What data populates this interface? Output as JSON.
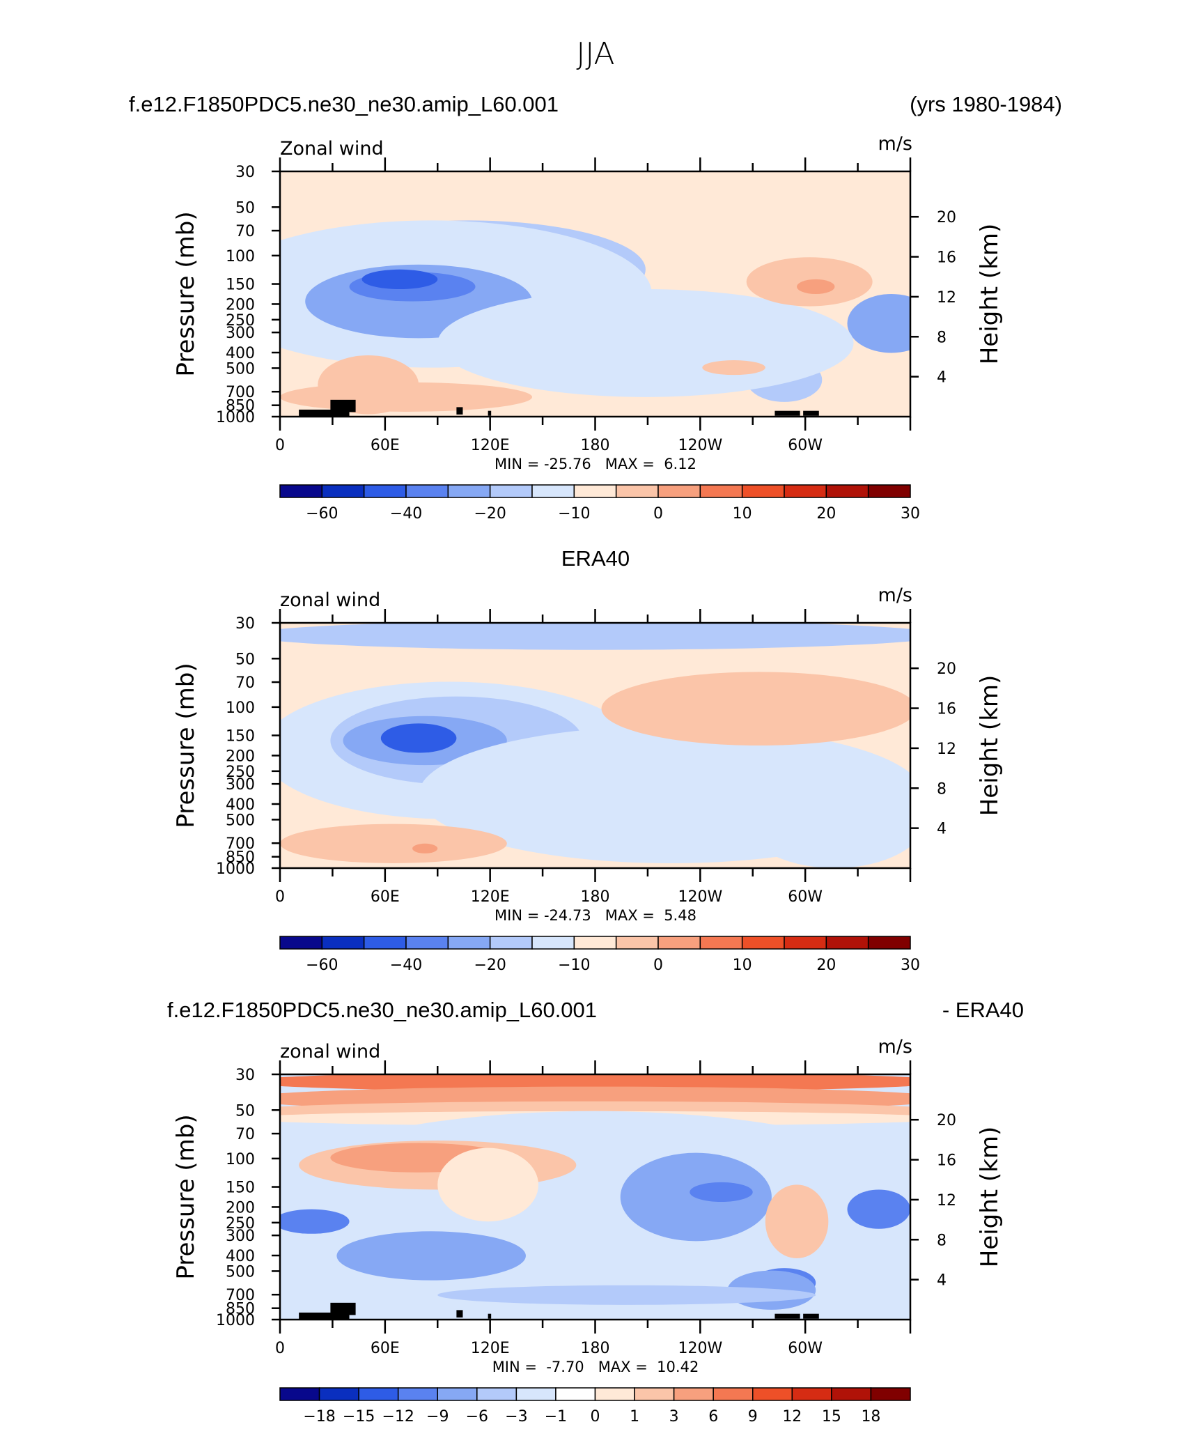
{
  "page": {
    "title": "JJA"
  },
  "colors": {
    "frame": "#000000",
    "text": "#000000",
    "terrain": "#000000"
  },
  "chart_data": [
    {
      "type": "heatmap",
      "id": "model",
      "case_title": "f.e12.F1850PDC5.ne30_ne30.amip_L60.001",
      "case_years": "(yrs 1980-1984)",
      "subtitle_left": "Zonal wind",
      "subtitle_right": "m/s",
      "ylabel": "Pressure (mb)",
      "ylabel_right": "Height (km)",
      "y_ticks": [
        "30",
        "50",
        "70",
        "100",
        "150",
        "200",
        "250",
        "300",
        "400",
        "500",
        "700",
        "850",
        "1000"
      ],
      "y_ticks_right": [
        "20",
        "16",
        "12",
        "8",
        "4"
      ],
      "x_ticks": [
        "0",
        "60E",
        "120E",
        "180",
        "120W",
        "60W"
      ],
      "stats": "MIN = -25.76   MAX =  6.12",
      "min": -25.76,
      "max": 6.12,
      "colorbar_labels": [
        "-60",
        "-40",
        "-20",
        "-10",
        "0",
        "10",
        "20",
        "30"
      ],
      "colorbar_colors": [
        "#08088c",
        "#0a2fbf",
        "#2e5ce6",
        "#5a82f0",
        "#86a8f4",
        "#b3cafa",
        "#d7e6fc",
        "#ffe9d7",
        "#fbc5a9",
        "#f7a07e",
        "#f47852",
        "#ee5028",
        "#d62c13",
        "#b01208",
        "#800000"
      ],
      "zero_color": "#ffe9d7",
      "terrain": true
    },
    {
      "type": "heatmap",
      "id": "obs",
      "case_title": "ERA40",
      "subtitle_left": "zonal wind",
      "subtitle_right": "m/s",
      "ylabel": "Pressure (mb)",
      "ylabel_right": "Height (km)",
      "y_ticks": [
        "30",
        "50",
        "70",
        "100",
        "150",
        "200",
        "250",
        "300",
        "400",
        "500",
        "700",
        "850",
        "1000"
      ],
      "y_ticks_right": [
        "20",
        "16",
        "12",
        "8",
        "4"
      ],
      "x_ticks": [
        "0",
        "60E",
        "120E",
        "180",
        "120W",
        "60W"
      ],
      "stats": "MIN = -24.73   MAX =  5.48",
      "min": -24.73,
      "max": 5.48,
      "colorbar_labels": [
        "-60",
        "-40",
        "-20",
        "-10",
        "0",
        "10",
        "20",
        "30"
      ],
      "colorbar_colors": [
        "#08088c",
        "#0a2fbf",
        "#2e5ce6",
        "#5a82f0",
        "#86a8f4",
        "#b3cafa",
        "#d7e6fc",
        "#ffe9d7",
        "#fbc5a9",
        "#f7a07e",
        "#f47852",
        "#ee5028",
        "#d62c13",
        "#b01208",
        "#800000"
      ],
      "zero_color": "#ffe9d7",
      "terrain": false
    },
    {
      "type": "heatmap",
      "id": "diff",
      "case_title": "f.e12.F1850PDC5.ne30_ne30.amip_L60.001",
      "case_suffix": "- ERA40",
      "subtitle_left": "zonal wind",
      "subtitle_right": "m/s",
      "ylabel": "Pressure (mb)",
      "ylabel_right": "Height (km)",
      "y_ticks": [
        "30",
        "50",
        "70",
        "100",
        "150",
        "200",
        "250",
        "300",
        "400",
        "500",
        "700",
        "850",
        "1000"
      ],
      "y_ticks_right": [
        "20",
        "16",
        "12",
        "8",
        "4"
      ],
      "x_ticks": [
        "0",
        "60E",
        "120E",
        "180",
        "120W",
        "60W"
      ],
      "stats": "MIN =  -7.70   MAX =  10.42",
      "min": -7.7,
      "max": 10.42,
      "colorbar_labels": [
        "-18",
        "-15",
        "-12",
        "-9",
        "-6",
        "-3",
        "-1",
        "0",
        "1",
        "3",
        "6",
        "9",
        "12",
        "15",
        "18"
      ],
      "colorbar_colors": [
        "#08088c",
        "#0a2fbf",
        "#2e5ce6",
        "#5a82f0",
        "#86a8f4",
        "#b3cafa",
        "#d7e6fc",
        "#ffffff",
        "#ffe9d7",
        "#fbc5a9",
        "#f7a07e",
        "#f47852",
        "#ee5028",
        "#d62c13",
        "#b01208",
        "#800000"
      ],
      "zero_color": "#ffe9d7",
      "terrain": true
    }
  ]
}
